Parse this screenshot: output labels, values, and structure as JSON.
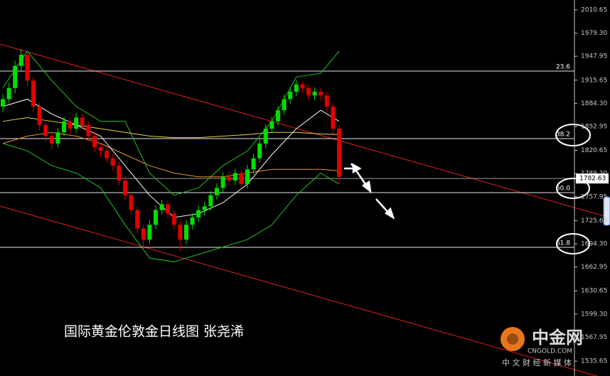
{
  "chart_data": {
    "type": "candlestick",
    "title": "国际黄金伦敦金日线图 张尧浠",
    "up_color": "#00e000",
    "down_color": "#e00000",
    "open": [
      1880,
      1890,
      1905,
      1935,
      1950,
      1915,
      1880,
      1855,
      1840,
      1830,
      1845,
      1860,
      1850,
      1865,
      1855,
      1840,
      1825,
      1820,
      1810,
      1800,
      1780,
      1760,
      1740,
      1715,
      1700,
      1720,
      1740,
      1748,
      1735,
      1720,
      1700,
      1720,
      1730,
      1740,
      1745,
      1760,
      1770,
      1785,
      1780,
      1790,
      1775,
      1795,
      1810,
      1830,
      1850,
      1860,
      1875,
      1890,
      1900,
      1910,
      1905,
      1895,
      1900,
      1895,
      1880,
      1850
    ],
    "high": [
      1897,
      1912,
      1942,
      1958,
      1955,
      1920,
      1885,
      1860,
      1846,
      1851,
      1866,
      1865,
      1871,
      1870,
      1860,
      1846,
      1830,
      1826,
      1816,
      1806,
      1786,
      1765,
      1745,
      1720,
      1726,
      1746,
      1754,
      1752,
      1740,
      1726,
      1726,
      1736,
      1746,
      1751,
      1766,
      1776,
      1791,
      1792,
      1796,
      1795,
      1801,
      1816,
      1836,
      1856,
      1866,
      1881,
      1896,
      1906,
      1916,
      1914,
      1910,
      1906,
      1905,
      1900,
      1885,
      1855
    ],
    "low": [
      1872,
      1884,
      1898,
      1928,
      1908,
      1872,
      1848,
      1832,
      1822,
      1825,
      1840,
      1844,
      1845,
      1849,
      1834,
      1818,
      1812,
      1804,
      1793,
      1773,
      1753,
      1733,
      1708,
      1688,
      1694,
      1714,
      1734,
      1729,
      1713,
      1685,
      1694,
      1714,
      1724,
      1733,
      1739,
      1754,
      1764,
      1774,
      1774,
      1769,
      1769,
      1789,
      1804,
      1824,
      1844,
      1854,
      1869,
      1884,
      1894,
      1898,
      1889,
      1889,
      1888,
      1873,
      1843,
      1775
    ],
    "close": [
      1890,
      1905,
      1935,
      1950,
      1915,
      1880,
      1855,
      1840,
      1830,
      1845,
      1860,
      1850,
      1865,
      1855,
      1840,
      1825,
      1820,
      1810,
      1800,
      1780,
      1760,
      1740,
      1715,
      1700,
      1720,
      1740,
      1748,
      1735,
      1720,
      1700,
      1720,
      1730,
      1740,
      1745,
      1760,
      1770,
      1785,
      1780,
      1790,
      1775,
      1795,
      1810,
      1830,
      1850,
      1860,
      1875,
      1890,
      1900,
      1910,
      1905,
      1895,
      1900,
      1895,
      1880,
      1850,
      1785
    ],
    "overlays": [
      {
        "color": "#22c022",
        "x": [
          0,
          4,
          8,
          12,
          16,
          20,
          24,
          28,
          32,
          36,
          40,
          44,
          48,
          52,
          55
        ],
        "values": [
          1905,
          1955,
          1915,
          1880,
          1860,
          1860,
          1790,
          1760,
          1770,
          1800,
          1820,
          1860,
          1920,
          1925,
          1955
        ]
      },
      {
        "color": "#22c022",
        "x": [
          0,
          4,
          8,
          12,
          16,
          20,
          24,
          28,
          32,
          36,
          40,
          44,
          48,
          52,
          55
        ],
        "values": [
          1830,
          1820,
          1800,
          1790,
          1770,
          1720,
          1675,
          1670,
          1680,
          1690,
          1700,
          1720,
          1760,
          1790,
          1775
        ]
      },
      {
        "color": "#e8d44a",
        "x": [
          0,
          4,
          8,
          12,
          16,
          20,
          24,
          28,
          32,
          36,
          40,
          44,
          48,
          52,
          55
        ],
        "values": [
          1860,
          1865,
          1860,
          1855,
          1850,
          1845,
          1840,
          1838,
          1838,
          1840,
          1842,
          1845,
          1845,
          1843,
          1842
        ]
      },
      {
        "color": "#e8962c",
        "x": [
          0,
          4,
          8,
          12,
          16,
          20,
          24,
          28,
          32,
          36,
          40,
          44,
          48,
          52,
          55
        ],
        "values": [
          1830,
          1840,
          1845,
          1840,
          1830,
          1815,
          1800,
          1790,
          1785,
          1785,
          1790,
          1795,
          1795,
          1795,
          1793
        ]
      },
      {
        "color": "#ffffff",
        "x": [
          0,
          4,
          8,
          12,
          16,
          20,
          24,
          28,
          32,
          36,
          40,
          44,
          48,
          52,
          55
        ],
        "values": [
          1880,
          1890,
          1870,
          1855,
          1840,
          1800,
          1760,
          1730,
          1735,
          1750,
          1775,
          1815,
          1850,
          1875,
          1860
        ]
      }
    ],
    "channel_lines": [
      {
        "color": "#e0201c",
        "values": [
          1964.5,
          1743.3
        ]
      },
      {
        "color": "#e0201c",
        "values": [
          1745.3,
          1524
        ]
      }
    ],
    "fib_levels": [
      {
        "label": "23.6",
        "price": 1928
      },
      {
        "label": "38.2",
        "price": 1836.6
      },
      {
        "label": "50.0",
        "price": 1763.5
      },
      {
        "label": "61.8",
        "price": 1689.5
      }
    ],
    "current_price": 1782.63,
    "ylim": [
      1515.5,
      2024.1
    ],
    "yticks": [
      2010.65,
      {
        "value": 1979.3,
        "label": "1979.30"
      },
      1947.95,
      1915.65,
      {
        "value": 1884.3,
        "label": "1884.30"
      },
      1852.95,
      1820.65,
      {
        "value": 1789.3,
        "label": "1789.30"
      },
      1757.95,
      1725.65,
      {
        "value": 1694.3,
        "label": "1694.30"
      },
      1662.95,
      1630.65,
      {
        "value": 1599.3,
        "label": "1599.30"
      },
      1567.95,
      1535.65
    ]
  },
  "watermark": {
    "name": "中金网",
    "url": "CNGOLD.COM",
    "tagline": "中 文 财 经 新 媒 体"
  }
}
